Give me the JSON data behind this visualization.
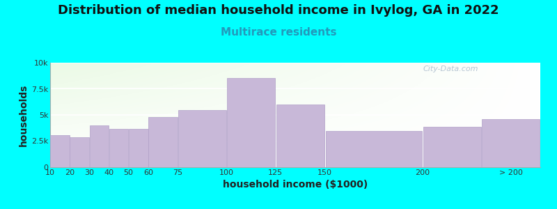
{
  "title": "Distribution of median household income in Ivylog, GA in 2022",
  "subtitle": "Multirace residents",
  "xlabel": "household income ($1000)",
  "ylabel": "households",
  "bg_color": "#00FFFF",
  "bar_color": "#C8B8D8",
  "bar_edge_color": "#B0A0C8",
  "bin_left_edges": [
    10,
    20,
    30,
    40,
    50,
    60,
    75,
    100,
    125,
    150,
    200,
    230
  ],
  "bin_widths": [
    10,
    10,
    10,
    10,
    10,
    15,
    25,
    25,
    25,
    50,
    30,
    30
  ],
  "values": [
    3100,
    2900,
    4000,
    3700,
    3700,
    4800,
    5500,
    8500,
    6000,
    3500,
    3900,
    4600
  ],
  "xlim": [
    10,
    260
  ],
  "ylim": [
    0,
    10000
  ],
  "xtick_positions": [
    10,
    20,
    30,
    40,
    50,
    60,
    75,
    100,
    125,
    150,
    200,
    245
  ],
  "xtick_labels": [
    "10",
    "20",
    "30",
    "40",
    "50",
    "60",
    "75",
    "100",
    "125",
    "150",
    "200",
    "> 200"
  ],
  "yticks": [
    0,
    2500,
    5000,
    7500,
    10000
  ],
  "ytick_labels": [
    "0",
    "2.5k",
    "5k",
    "7.5k",
    "10k"
  ],
  "watermark": "City-Data.com",
  "title_fontsize": 13,
  "subtitle_fontsize": 11,
  "axis_label_fontsize": 10
}
